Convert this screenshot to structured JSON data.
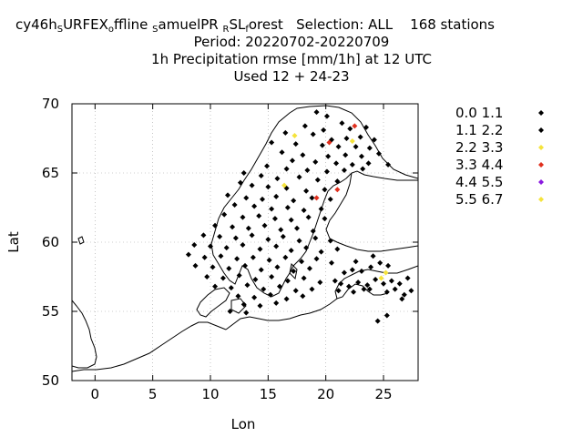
{
  "title": {
    "line1_prefix": "cy46h",
    "line1_sub1": "S",
    "line1_mid1": "URFEX",
    "line1_sub2": "o",
    "line1_mid2": "ffline",
    "line1_sub3": "S",
    "line1_mid3": "amuelPR",
    "line1_sub4": "R",
    "line1_mid4": "SL",
    "line1_sub5": "f",
    "line1_mid5": "orest",
    "line1_selection": "Selection: ALL",
    "line1_stations": "168 stations",
    "line2": "Period: 20220702-20220709",
    "line3": "1h Precipitation rmse [mm/1h] at  12 UTC",
    "line4": "Used  12 + 24-23"
  },
  "chart_data": {
    "type": "scatter",
    "xlabel": "Lon",
    "ylabel": "Lat",
    "xlim": [
      -2,
      28
    ],
    "ylim": [
      50,
      70
    ],
    "xticks": [
      "0",
      "5",
      "10",
      "15",
      "20",
      "25"
    ],
    "xtick_values": [
      0,
      5,
      10,
      15,
      20,
      25
    ],
    "yticks": [
      "50",
      "55",
      "60",
      "65",
      "70"
    ],
    "ytick_values": [
      50,
      55,
      60,
      65,
      70
    ],
    "grid": true,
    "legend_position": "right",
    "series": [
      {
        "name": "0.0 1.1",
        "color": "#000000",
        "points": [
          [
            19.2,
            69.4
          ],
          [
            20.1,
            69.1
          ],
          [
            21.4,
            68.6
          ],
          [
            18.2,
            68.4
          ],
          [
            19.8,
            68.1
          ],
          [
            22.1,
            68.2
          ],
          [
            23.5,
            68.3
          ],
          [
            16.5,
            67.9
          ],
          [
            18.9,
            67.8
          ],
          [
            20.5,
            67.4
          ],
          [
            21.8,
            67.5
          ],
          [
            23.0,
            67.6
          ],
          [
            24.2,
            67.4
          ],
          [
            15.3,
            67.2
          ],
          [
            17.4,
            67.1
          ],
          [
            19.7,
            67.0
          ],
          [
            21.1,
            66.9
          ],
          [
            22.6,
            66.9
          ],
          [
            23.8,
            66.8
          ],
          [
            16.2,
            66.5
          ],
          [
            18.0,
            66.3
          ],
          [
            20.2,
            66.2
          ],
          [
            21.7,
            66.3
          ],
          [
            23.1,
            66.2
          ],
          [
            24.6,
            66.4
          ],
          [
            17.1,
            65.9
          ],
          [
            19.1,
            65.8
          ],
          [
            20.9,
            65.7
          ],
          [
            22.3,
            65.6
          ],
          [
            23.7,
            65.7
          ],
          [
            25.4,
            65.6
          ],
          [
            14.9,
            65.5
          ],
          [
            16.6,
            65.3
          ],
          [
            18.4,
            65.2
          ],
          [
            20.1,
            65.1
          ],
          [
            21.6,
            65.2
          ],
          [
            23.2,
            65.3
          ],
          [
            12.9,
            65.0
          ],
          [
            14.4,
            64.8
          ],
          [
            15.8,
            64.6
          ],
          [
            17.7,
            64.7
          ],
          [
            19.3,
            64.5
          ],
          [
            21.0,
            64.4
          ],
          [
            12.6,
            64.3
          ],
          [
            13.6,
            64.1
          ],
          [
            15.0,
            64.0
          ],
          [
            16.6,
            63.9
          ],
          [
            18.3,
            63.7
          ],
          [
            19.9,
            63.8
          ],
          [
            11.5,
            63.4
          ],
          [
            13.1,
            63.2
          ],
          [
            14.5,
            63.1
          ],
          [
            15.7,
            63.3
          ],
          [
            17.2,
            63.0
          ],
          [
            18.8,
            63.2
          ],
          [
            20.4,
            63.1
          ],
          [
            12.1,
            62.7
          ],
          [
            13.8,
            62.6
          ],
          [
            15.3,
            62.4
          ],
          [
            16.7,
            62.5
          ],
          [
            18.1,
            62.3
          ],
          [
            19.6,
            62.4
          ],
          [
            11.2,
            62.0
          ],
          [
            12.8,
            61.8
          ],
          [
            14.2,
            61.9
          ],
          [
            15.6,
            61.7
          ],
          [
            17.0,
            61.6
          ],
          [
            18.5,
            61.8
          ],
          [
            19.9,
            61.7
          ],
          [
            10.4,
            61.2
          ],
          [
            11.9,
            61.1
          ],
          [
            13.3,
            61.0
          ],
          [
            14.7,
            61.2
          ],
          [
            16.1,
            60.9
          ],
          [
            17.5,
            61.0
          ],
          [
            18.9,
            60.8
          ],
          [
            9.4,
            60.5
          ],
          [
            10.8,
            60.4
          ],
          [
            12.2,
            60.3
          ],
          [
            13.6,
            60.5
          ],
          [
            15.0,
            60.2
          ],
          [
            16.3,
            60.4
          ],
          [
            17.7,
            60.1
          ],
          [
            19.1,
            60.3
          ],
          [
            20.4,
            60.1
          ],
          [
            8.6,
            59.8
          ],
          [
            10.0,
            59.7
          ],
          [
            11.4,
            59.6
          ],
          [
            12.8,
            59.8
          ],
          [
            14.3,
            59.5
          ],
          [
            15.7,
            59.7
          ],
          [
            17.0,
            59.4
          ],
          [
            18.3,
            59.6
          ],
          [
            19.6,
            59.3
          ],
          [
            21.0,
            59.5
          ],
          [
            8.1,
            59.1
          ],
          [
            9.5,
            58.9
          ],
          [
            10.9,
            59.0
          ],
          [
            12.3,
            58.8
          ],
          [
            13.7,
            58.9
          ],
          [
            15.1,
            58.7
          ],
          [
            16.5,
            58.9
          ],
          [
            17.9,
            58.6
          ],
          [
            19.2,
            58.8
          ],
          [
            20.5,
            58.5
          ],
          [
            8.7,
            58.3
          ],
          [
            10.2,
            58.2
          ],
          [
            11.6,
            58.1
          ],
          [
            13.0,
            58.3
          ],
          [
            14.4,
            58.0
          ],
          [
            15.8,
            58.2
          ],
          [
            17.2,
            57.9
          ],
          [
            18.6,
            58.1
          ],
          [
            9.7,
            57.5
          ],
          [
            11.1,
            57.4
          ],
          [
            12.5,
            57.6
          ],
          [
            13.9,
            57.3
          ],
          [
            15.3,
            57.5
          ],
          [
            16.7,
            57.2
          ],
          [
            18.1,
            57.4
          ],
          [
            19.5,
            57.1
          ],
          [
            10.4,
            56.8
          ],
          [
            11.8,
            56.7
          ],
          [
            13.2,
            56.9
          ],
          [
            14.6,
            56.6
          ],
          [
            16.0,
            56.8
          ],
          [
            17.4,
            56.5
          ],
          [
            18.8,
            56.6
          ],
          [
            12.4,
            56.1
          ],
          [
            13.8,
            56.0
          ],
          [
            15.2,
            56.2
          ],
          [
            16.6,
            55.9
          ],
          [
            18.0,
            56.1
          ],
          [
            12.9,
            55.5
          ],
          [
            14.3,
            55.4
          ],
          [
            15.7,
            55.6
          ],
          [
            11.7,
            55.0
          ],
          [
            13.1,
            54.9
          ],
          [
            20.8,
            57.2
          ],
          [
            21.6,
            57.8
          ],
          [
            22.3,
            58.0
          ],
          [
            23.1,
            57.9
          ],
          [
            23.9,
            58.2
          ],
          [
            24.7,
            58.5
          ],
          [
            25.4,
            58.3
          ],
          [
            21.3,
            57.0
          ],
          [
            22.0,
            56.8
          ],
          [
            22.8,
            57.1
          ],
          [
            23.6,
            56.9
          ],
          [
            24.3,
            57.3
          ],
          [
            25.0,
            57.0
          ],
          [
            25.7,
            57.2
          ],
          [
            26.4,
            57.0
          ],
          [
            27.1,
            57.4
          ],
          [
            21.1,
            56.5
          ],
          [
            22.4,
            56.4
          ],
          [
            23.8,
            56.6
          ],
          [
            25.3,
            56.4
          ],
          [
            26.0,
            56.6
          ],
          [
            26.8,
            56.2
          ],
          [
            27.4,
            56.5
          ],
          [
            24.5,
            54.3
          ],
          [
            25.3,
            54.7
          ],
          [
            26.6,
            55.9
          ],
          [
            23.3,
            56.6
          ],
          [
            22.6,
            58.6
          ],
          [
            24.1,
            59.0
          ]
        ]
      },
      {
        "name": "1.1 2.2",
        "color": "#000000",
        "points": []
      },
      {
        "name": "2.2 3.3",
        "color": "#f5e33c",
        "points": [
          [
            17.3,
            67.7
          ],
          [
            22.3,
            67.3
          ],
          [
            16.4,
            64.1
          ],
          [
            25.2,
            57.8
          ],
          [
            24.8,
            57.4
          ]
        ]
      },
      {
        "name": "3.3 4.4",
        "color": "#e0301e",
        "points": [
          [
            22.5,
            68.4
          ],
          [
            20.3,
            67.2
          ],
          [
            19.2,
            63.2
          ],
          [
            21.0,
            63.8
          ]
        ]
      },
      {
        "name": "4.4 5.5",
        "color": "#8b1ae0",
        "points": []
      },
      {
        "name": "5.5 6.7",
        "color": "#f5e33c",
        "points": []
      }
    ]
  }
}
